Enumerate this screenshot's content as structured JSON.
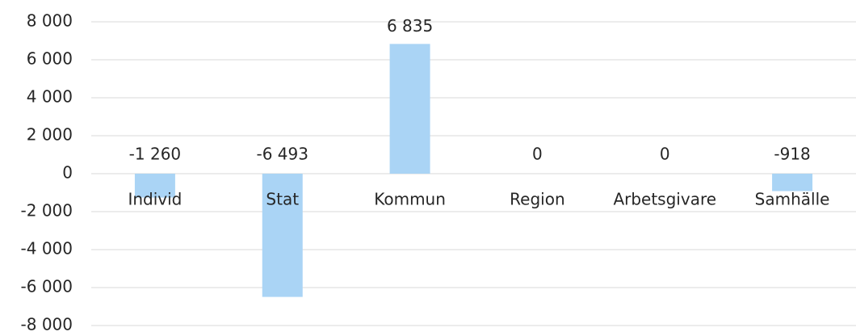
{
  "chart_data": {
    "type": "bar",
    "categories": [
      "Individ",
      "Stat",
      "Kommun",
      "Region",
      "Arbetsgivare",
      "Samhälle"
    ],
    "values": [
      -1260,
      -6493,
      6835,
      0,
      0,
      -918
    ],
    "value_labels": [
      "-1 260",
      "-6 493",
      "6 835",
      "0",
      "0",
      "-918"
    ],
    "color": "#aad4f5",
    "ylim": [
      -8000,
      8000
    ],
    "yticks": [
      {
        "value": -8000,
        "label": "-8 000"
      },
      {
        "value": -6000,
        "label": "-6 000"
      },
      {
        "value": -4000,
        "label": "-4 000"
      },
      {
        "value": -2000,
        "label": "-2 000"
      },
      0,
      {
        "value": 2000,
        "label": "2 000"
      },
      {
        "value": 4000,
        "label": "4 000"
      },
      {
        "value": 6000,
        "label": "6 000"
      },
      {
        "value": 8000,
        "label": "8 000"
      }
    ],
    "grid": true
  }
}
